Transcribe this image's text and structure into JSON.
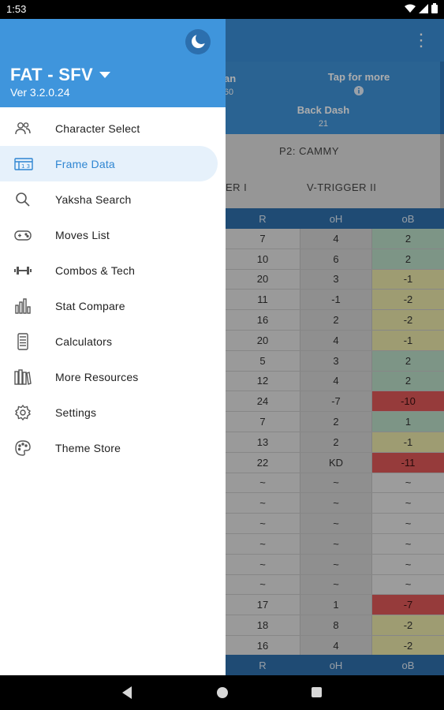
{
  "status_bar": {
    "time": "1:53",
    "wifi_icon": "wifi-icon",
    "signal_icon": "signal-icon",
    "battery_icon": "battery-icon"
  },
  "background": {
    "info_left_partial": "an",
    "info_left_value_partial": "60",
    "tap_for_more": "Tap for more",
    "info_icon": "info-icon",
    "back_dash_label": "Back Dash",
    "back_dash_value": "21",
    "p2_label": "P2: CAMMY",
    "vtrigger1_partial": "ER I",
    "vtrigger2": "V-TRIGGER II",
    "columns": [
      "R",
      "oH",
      "oB"
    ],
    "rows": [
      {
        "r": "7",
        "oh": "4",
        "ob": "2",
        "tone": "green"
      },
      {
        "r": "10",
        "oh": "6",
        "ob": "2",
        "tone": "green"
      },
      {
        "r": "20",
        "oh": "3",
        "ob": "-1",
        "tone": "yellow"
      },
      {
        "r": "11",
        "oh": "-1",
        "ob": "-2",
        "tone": "yellow"
      },
      {
        "r": "16",
        "oh": "2",
        "ob": "-2",
        "tone": "yellow"
      },
      {
        "r": "20",
        "oh": "4",
        "ob": "-1",
        "tone": "yellow"
      },
      {
        "r": "5",
        "oh": "3",
        "ob": "2",
        "tone": "green"
      },
      {
        "r": "12",
        "oh": "4",
        "ob": "2",
        "tone": "green"
      },
      {
        "r": "24",
        "oh": "-7",
        "ob": "-10",
        "tone": "red"
      },
      {
        "r": "7",
        "oh": "2",
        "ob": "1",
        "tone": "green"
      },
      {
        "r": "13",
        "oh": "2",
        "ob": "-1",
        "tone": "yellow"
      },
      {
        "r": "22",
        "oh": "KD",
        "ob": "-11",
        "tone": "red"
      },
      {
        "r": "~",
        "oh": "~",
        "ob": "~",
        "tone": "none"
      },
      {
        "r": "~",
        "oh": "~",
        "ob": "~",
        "tone": "none"
      },
      {
        "r": "~",
        "oh": "~",
        "ob": "~",
        "tone": "none"
      },
      {
        "r": "~",
        "oh": "~",
        "ob": "~",
        "tone": "none"
      },
      {
        "r": "~",
        "oh": "~",
        "ob": "~",
        "tone": "none"
      },
      {
        "r": "~",
        "oh": "~",
        "ob": "~",
        "tone": "none"
      },
      {
        "r": "17",
        "oh": "1",
        "ob": "-7",
        "tone": "red"
      },
      {
        "r": "18",
        "oh": "8",
        "ob": "-2",
        "tone": "yellow"
      },
      {
        "r": "16",
        "oh": "4",
        "ob": "-2",
        "tone": "yellow"
      }
    ]
  },
  "drawer": {
    "theme_toggle_icon": "moon-icon",
    "app_title": "FAT - SFV",
    "version": "Ver 3.2.0.24",
    "items": [
      {
        "label": "Character Select",
        "icon": "people-icon"
      },
      {
        "label": "Frame Data",
        "icon": "frame-data-icon",
        "active": true
      },
      {
        "label": "Yaksha Search",
        "icon": "search-icon"
      },
      {
        "label": "Moves List",
        "icon": "gamepad-icon"
      },
      {
        "label": "Combos & Tech",
        "icon": "dumbbell-icon"
      },
      {
        "label": "Stat Compare",
        "icon": "bar-chart-icon"
      },
      {
        "label": "Calculators",
        "icon": "calculator-icon"
      },
      {
        "label": "More Resources",
        "icon": "library-icon"
      },
      {
        "label": "Settings",
        "icon": "gear-icon"
      },
      {
        "label": "Theme Store",
        "icon": "palette-icon"
      }
    ]
  },
  "colors": {
    "accent": "#3f95dc",
    "active_text": "#2f86d2",
    "green": "#b9dcc6",
    "yellow": "#e9e6a9",
    "red": "#de5757"
  }
}
